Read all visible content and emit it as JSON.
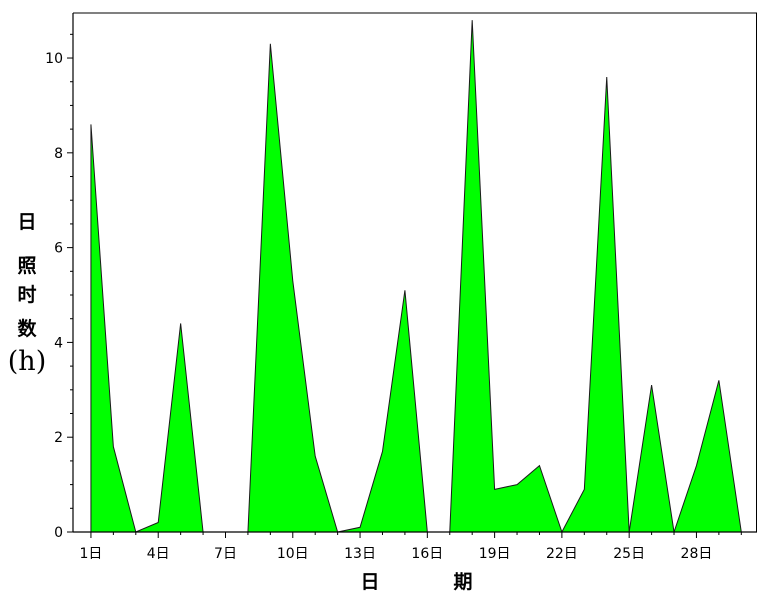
{
  "chart_data": {
    "type": "area",
    "title": "",
    "xlabel": {
      "left": "日",
      "right": "期"
    },
    "ylabel": {
      "chars": [
        "日",
        "照",
        "时",
        "数"
      ],
      "unit": "(h)"
    },
    "x": [
      1,
      2,
      3,
      4,
      5,
      6,
      7,
      8,
      9,
      10,
      11,
      12,
      13,
      14,
      15,
      16,
      17,
      18,
      19,
      20,
      21,
      22,
      23,
      24,
      25,
      26,
      27,
      28,
      29,
      30
    ],
    "series": [
      {
        "values": [
          8.6,
          1.8,
          0,
          0.2,
          4.4,
          0,
          0,
          0,
          10.3,
          5.3,
          1.6,
          0,
          0.1,
          1.7,
          5.1,
          0,
          0,
          10.8,
          0.9,
          1.0,
          1.4,
          0,
          0.9,
          9.6,
          0,
          3.1,
          0,
          1.4,
          3.2,
          0
        ]
      }
    ],
    "xlim": [
      0.2,
      30.7
    ],
    "ylim": [
      0,
      10.95
    ],
    "xticks": [
      1,
      4,
      7,
      10,
      13,
      16,
      19,
      22,
      25,
      28
    ],
    "xtick_labels": [
      "1日",
      "4日",
      "7日",
      "10日",
      "13日",
      "16日",
      "19日",
      "22日",
      "25日",
      "28日"
    ],
    "yticks": [
      0,
      2,
      4,
      6,
      8,
      10
    ],
    "ytick_labels": [
      "0",
      "2",
      "4",
      "6",
      "8",
      "10"
    ],
    "fill_color": "#00ff00",
    "grid": false,
    "legend": "none"
  }
}
